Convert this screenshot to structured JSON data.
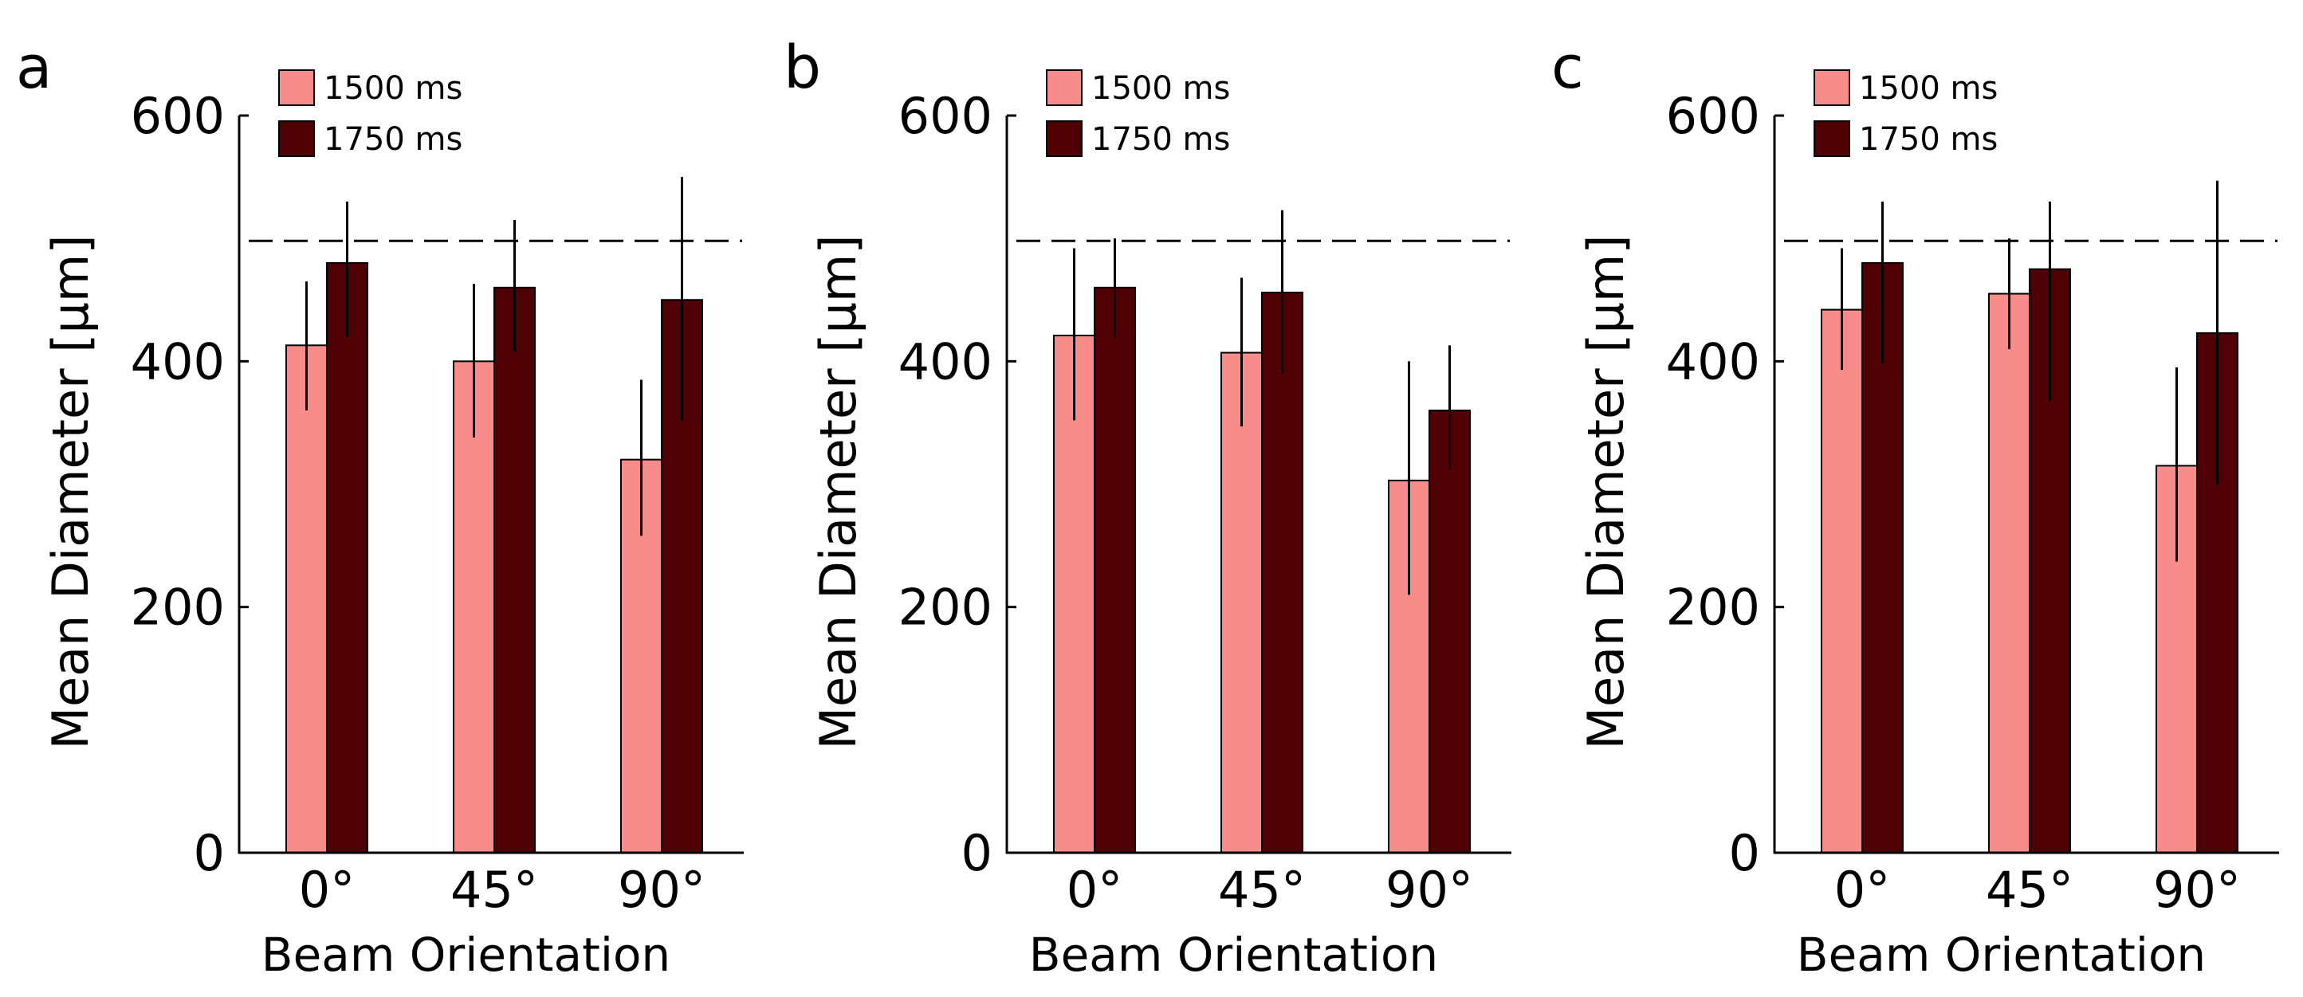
{
  "colors": {
    "series_1500": "#f78c8a",
    "series_1750": "#4e0004",
    "axis": "#000000",
    "error_bar": "#000000",
    "reference_line": "#000000",
    "background": "#ffffff"
  },
  "chart_data": [
    {
      "panel": "a",
      "type": "bar",
      "categories": [
        "0°",
        "45°",
        "90°"
      ],
      "series": [
        {
          "name": "1500 ms",
          "values": [
            413,
            400,
            320
          ],
          "errors": [
            [
              360,
              465
            ],
            [
              338,
              463
            ],
            [
              258,
              385
            ]
          ]
        },
        {
          "name": "1750 ms",
          "values": [
            480,
            460,
            450
          ],
          "errors": [
            [
              420,
              530
            ],
            [
              408,
              515
            ],
            [
              352,
              550
            ]
          ]
        }
      ],
      "reference_line": 498,
      "xlabel": "Beam Orientation",
      "ylabel": "Mean Diameter [µm]",
      "ylim": [
        0,
        600
      ],
      "yticks": [
        "0",
        "200",
        "400",
        "600"
      ],
      "legend_position": "top-left",
      "grid": false
    },
    {
      "panel": "b",
      "type": "bar",
      "categories": [
        "0°",
        "45°",
        "90°"
      ],
      "series": [
        {
          "name": "1500 ms",
          "values": [
            421,
            407,
            303
          ],
          "errors": [
            [
              352,
              492
            ],
            [
              347,
              468
            ],
            [
              210,
              400
            ]
          ]
        },
        {
          "name": "1750 ms",
          "values": [
            460,
            456,
            360
          ],
          "errors": [
            [
              420,
              500
            ],
            [
              390,
              523
            ],
            [
              312,
              413
            ]
          ]
        }
      ],
      "reference_line": 498,
      "xlabel": "Beam Orientation",
      "ylabel": "Mean Diameter [µm]",
      "ylim": [
        0,
        600
      ],
      "yticks": [
        "0",
        "200",
        "400",
        "600"
      ],
      "legend_position": "top-left",
      "grid": false
    },
    {
      "panel": "c",
      "type": "bar",
      "categories": [
        "0°",
        "45°",
        "90°"
      ],
      "series": [
        {
          "name": "1500 ms",
          "values": [
            442,
            455,
            315
          ],
          "errors": [
            [
              393,
              492
            ],
            [
              410,
              500
            ],
            [
              237,
              395
            ]
          ]
        },
        {
          "name": "1750 ms",
          "values": [
            480,
            475,
            423
          ],
          "errors": [
            [
              398,
              530
            ],
            [
              368,
              530
            ],
            [
              300,
              547
            ]
          ]
        }
      ],
      "reference_line": 498,
      "xlabel": "Beam Orientation",
      "ylabel": "Mean Diameter [µm]",
      "ylim": [
        0,
        600
      ],
      "yticks": [
        "0",
        "200",
        "400",
        "600"
      ],
      "legend_position": "top-left",
      "grid": false
    }
  ]
}
